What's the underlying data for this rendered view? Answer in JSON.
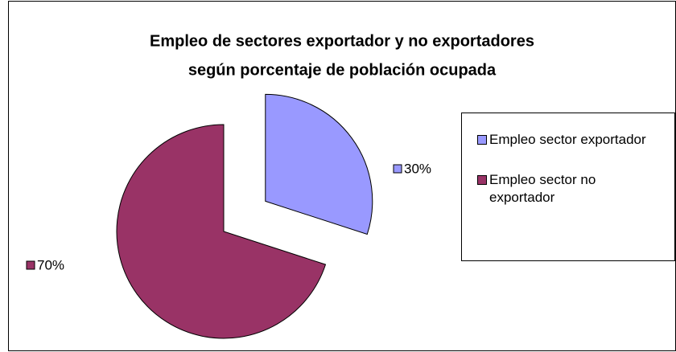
{
  "chart_data": {
    "type": "pie",
    "title": [
      "Empleo de sectores exportador y no exportadores",
      "según porcentaje de población ocupada"
    ],
    "categories": [
      "Empleo sector exportador",
      "Empleo sector no exportador"
    ],
    "values": [
      30,
      70
    ],
    "value_labels": [
      "30%",
      "70%"
    ],
    "colors": [
      "#9999ff",
      "#993366"
    ],
    "legend": "right"
  }
}
